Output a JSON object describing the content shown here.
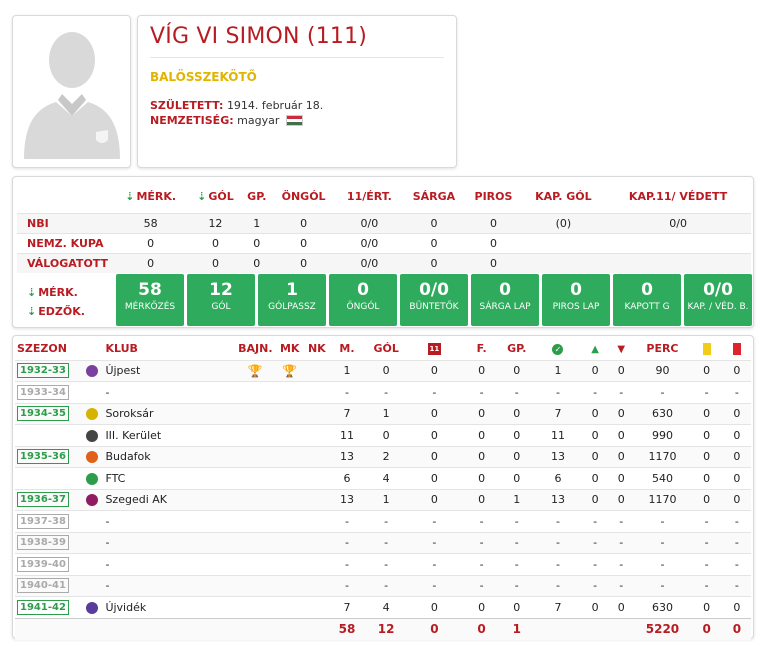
{
  "player": {
    "name": "VÍG VI SIMON (111)",
    "position": "BALÖSSZEKÖTŐ",
    "born_label": "SZÜLETETT:",
    "born_value": "1914. február 18.",
    "nationality_label": "NEMZETISÉG:",
    "nationality_value": "magyar"
  },
  "summary": {
    "headers": [
      "MÉRK.",
      "GÓL",
      "GP.",
      "ÖNGÓL",
      "11/ÉRT.",
      "SÁRGA",
      "PIROS",
      "KAP. GÓL",
      "KAP.11/ VÉDETT"
    ],
    "rows": [
      {
        "label": "NBI",
        "values": [
          "58",
          "12",
          "1",
          "0",
          "0/0",
          "0",
          "0",
          "(0)",
          "0/0"
        ]
      },
      {
        "label": "NEMZ. KUPA",
        "values": [
          "0",
          "0",
          "0",
          "0",
          "0/0",
          "0",
          "0",
          "",
          ""
        ]
      },
      {
        "label": "VÁLOGATOTT",
        "values": [
          "0",
          "0",
          "0",
          "0",
          "0/0",
          "0",
          "0",
          "",
          ""
        ]
      }
    ],
    "legend": [
      "MÉRK.",
      "EDZŐK."
    ],
    "tiles": [
      {
        "value": "58",
        "label": "MÉRKŐZÉS"
      },
      {
        "value": "12",
        "label": "GÓL"
      },
      {
        "value": "1",
        "label": "GÓLPASSZ"
      },
      {
        "value": "0",
        "label": "ÖNGÓL"
      },
      {
        "value": "0/0",
        "label": "BÜNTETŐK"
      },
      {
        "value": "0",
        "label": "SÁRGA LAP"
      },
      {
        "value": "0",
        "label": "PIROS LAP"
      },
      {
        "value": "0",
        "label": "KAPOTT G"
      },
      {
        "value": "0/0",
        "label": "KAP. / VÉD. B."
      }
    ]
  },
  "career": {
    "headers": {
      "season": "SZEZON",
      "club": "KLUB",
      "champ": "BAJN.",
      "cup": "MK",
      "nk": "NK",
      "apps": "M.",
      "goals": "GÓL",
      "pen": "11",
      "f": "F.",
      "gp": "GP.",
      "min": "PERC"
    },
    "rows": [
      {
        "season": "1932-33",
        "active": true,
        "club": "Újpest",
        "icon": "#7b3fa0",
        "trophy": true,
        "m": "1",
        "g": "0",
        "p": "0",
        "f": "0",
        "gp": "0",
        "s": "1",
        "up": "0",
        "down": "0",
        "min": "90",
        "y": "0",
        "r": "0"
      },
      {
        "season": "1933-34",
        "active": false,
        "club": "-",
        "icon": "",
        "trophy": false,
        "m": "-",
        "g": "-",
        "p": "-",
        "f": "-",
        "gp": "-",
        "s": "-",
        "up": "-",
        "down": "-",
        "min": "-",
        "y": "-",
        "r": "-"
      },
      {
        "season": "1934-35",
        "active": true,
        "club": "Soroksár",
        "icon": "#d4b400",
        "trophy": false,
        "m": "7",
        "g": "1",
        "p": "0",
        "f": "0",
        "gp": "0",
        "s": "7",
        "up": "0",
        "down": "0",
        "min": "630",
        "y": "0",
        "r": "0"
      },
      {
        "season": "",
        "active": true,
        "club": "III. Kerület",
        "icon": "#444444",
        "trophy": false,
        "m": "11",
        "g": "0",
        "p": "0",
        "f": "0",
        "gp": "0",
        "s": "11",
        "up": "0",
        "down": "0",
        "min": "990",
        "y": "0",
        "r": "0"
      },
      {
        "season": "1935-36",
        "active": true,
        "club": "Budafok",
        "icon": "#e0621a",
        "trophy": false,
        "m": "13",
        "g": "2",
        "p": "0",
        "f": "0",
        "gp": "0",
        "s": "13",
        "up": "0",
        "down": "0",
        "min": "1170",
        "y": "0",
        "r": "0"
      },
      {
        "season": "",
        "active": true,
        "club": "FTC",
        "icon": "#2c9d4b",
        "trophy": false,
        "m": "6",
        "g": "4",
        "p": "0",
        "f": "0",
        "gp": "0",
        "s": "6",
        "up": "0",
        "down": "0",
        "min": "540",
        "y": "0",
        "r": "0"
      },
      {
        "season": "1936-37",
        "active": true,
        "club": "Szegedi AK",
        "icon": "#8e1c63",
        "trophy": false,
        "m": "13",
        "g": "1",
        "p": "0",
        "f": "0",
        "gp": "1",
        "s": "13",
        "up": "0",
        "down": "0",
        "min": "1170",
        "y": "0",
        "r": "0"
      },
      {
        "season": "1937-38",
        "active": false,
        "club": "-",
        "icon": "",
        "trophy": false,
        "m": "-",
        "g": "-",
        "p": "-",
        "f": "-",
        "gp": "-",
        "s": "-",
        "up": "-",
        "down": "-",
        "min": "-",
        "y": "-",
        "r": "-"
      },
      {
        "season": "1938-39",
        "active": false,
        "club": "-",
        "icon": "",
        "trophy": false,
        "m": "-",
        "g": "-",
        "p": "-",
        "f": "-",
        "gp": "-",
        "s": "-",
        "up": "-",
        "down": "-",
        "min": "-",
        "y": "-",
        "r": "-"
      },
      {
        "season": "1939-40",
        "active": false,
        "club": "-",
        "icon": "",
        "trophy": false,
        "m": "-",
        "g": "-",
        "p": "-",
        "f": "-",
        "gp": "-",
        "s": "-",
        "up": "-",
        "down": "-",
        "min": "-",
        "y": "-",
        "r": "-"
      },
      {
        "season": "1940-41",
        "active": false,
        "club": "-",
        "icon": "",
        "trophy": false,
        "m": "-",
        "g": "-",
        "p": "-",
        "f": "-",
        "gp": "-",
        "s": "-",
        "up": "-",
        "down": "-",
        "min": "-",
        "y": "-",
        "r": "-"
      },
      {
        "season": "1941-42",
        "active": true,
        "club": "Újvidék",
        "icon": "#5a3c9a",
        "trophy": false,
        "m": "7",
        "g": "4",
        "p": "0",
        "f": "0",
        "gp": "0",
        "s": "7",
        "up": "0",
        "down": "0",
        "min": "630",
        "y": "0",
        "r": "0"
      }
    ],
    "totals": {
      "m": "58",
      "g": "12",
      "p": "0",
      "f": "0",
      "gp": "1",
      "min": "5220",
      "y": "0",
      "r": "0"
    }
  },
  "colors": {
    "accent": "#b81c22",
    "green": "#2eab5c",
    "gold": "#e1b400"
  }
}
